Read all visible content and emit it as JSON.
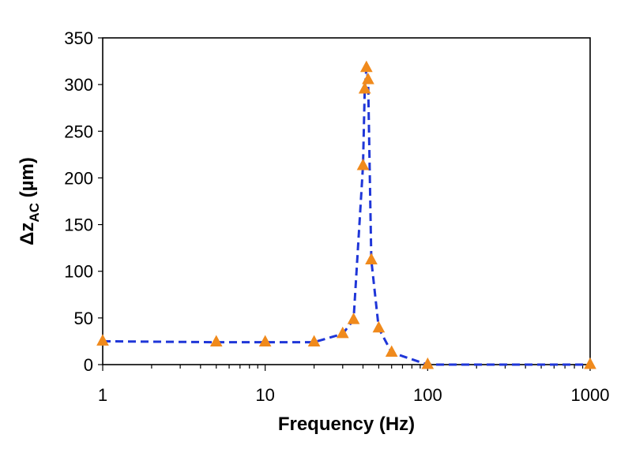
{
  "chart_data": {
    "type": "scatter",
    "xscale": "log",
    "xlim": [
      1,
      1000
    ],
    "ylim": [
      0,
      350
    ],
    "xlabel": "Frequency (Hz)",
    "ylabel_main": "Δz",
    "ylabel_sub": "AC",
    "ylabel_unit": " (µm)",
    "x_ticks": [
      1,
      10,
      100,
      1000
    ],
    "x_tick_labels": [
      "1",
      "10",
      "100",
      "1000"
    ],
    "y_ticks": [
      0,
      50,
      100,
      150,
      200,
      250,
      300,
      350
    ],
    "y_tick_labels": [
      "0",
      "50",
      "100",
      "150",
      "200",
      "250",
      "300",
      "350"
    ],
    "grid": false,
    "legend": "none",
    "series": [
      {
        "marker": "triangle",
        "marker_color": "#f08a1c",
        "line_style": "dashed",
        "line_color": "#1f36d8",
        "x": [
          1,
          5,
          10,
          20,
          30,
          35,
          40,
          41,
          42,
          43,
          45,
          50,
          60,
          100,
          1000
        ],
        "y": [
          25,
          24,
          24,
          24,
          33,
          48,
          213,
          295,
          318,
          305,
          112,
          39,
          13,
          0,
          0
        ]
      }
    ]
  }
}
